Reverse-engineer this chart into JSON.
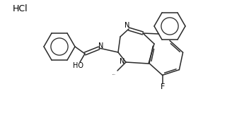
{
  "background_color": "#ffffff",
  "line_color": "#2a2a2a",
  "text_color": "#000000",
  "hcl_label": "HCl",
  "f_label": "F",
  "n_label": "N",
  "ho_label": "HO",
  "methyl_label": "methyl"
}
